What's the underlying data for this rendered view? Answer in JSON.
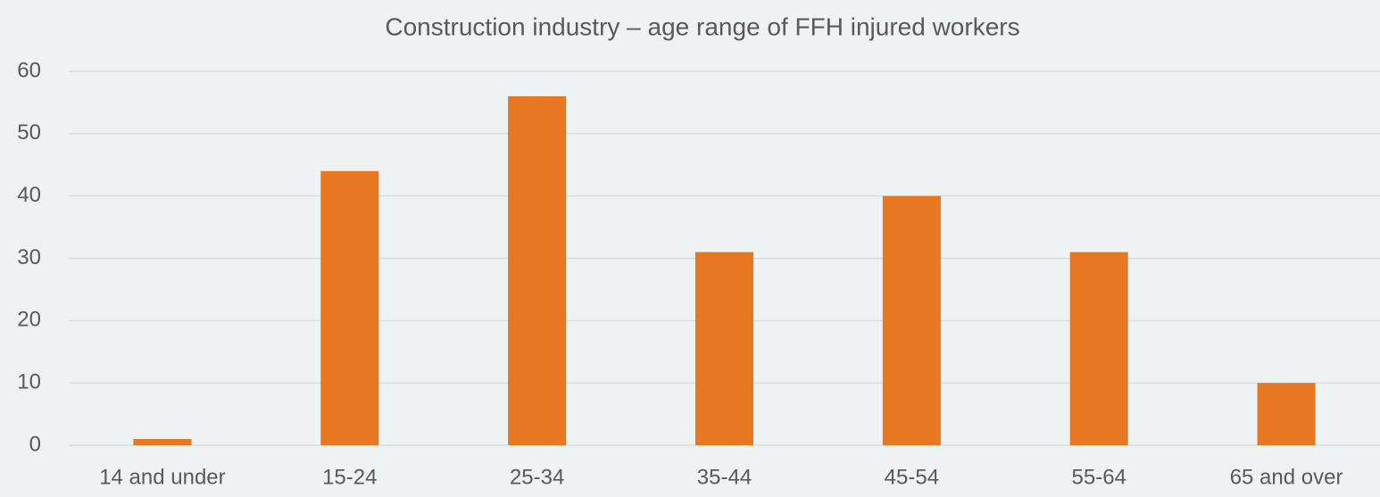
{
  "chart_data": {
    "type": "bar",
    "title": "Construction industry – age range of FFH injured workers",
    "categories": [
      "14 and under",
      "15-24",
      "25-34",
      "35-44",
      "45-54",
      "55-64",
      "65 and over"
    ],
    "values": [
      1,
      44,
      56,
      31,
      40,
      31,
      10
    ],
    "color": "#e87722",
    "ylim": [
      0,
      60
    ],
    "yticks": [
      0,
      10,
      20,
      30,
      40,
      50,
      60
    ],
    "grid": true
  }
}
